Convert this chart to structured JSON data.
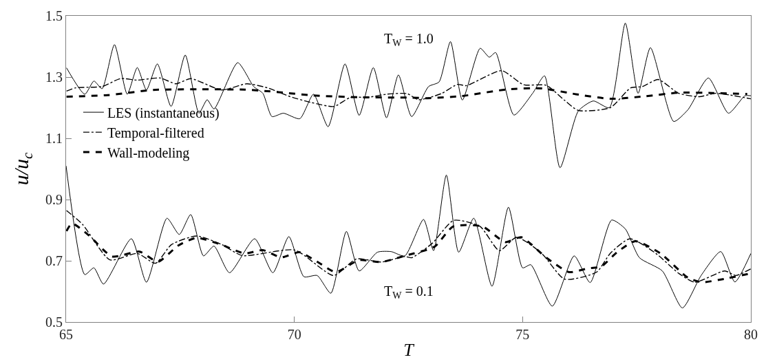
{
  "chart_data": {
    "type": "line",
    "xlabel": "T",
    "ylabel": "u/u$_{c}$",
    "xlim": [
      65,
      80
    ],
    "xticks": [
      65,
      70,
      75,
      80
    ],
    "ylim": [
      0.5,
      1.5
    ],
    "yticks": [
      0.5,
      0.7,
      0.9,
      1.1,
      1.3,
      1.5
    ],
    "legend": "left",
    "marker": "none",
    "annotations": [
      "T$_{W}$ = 1.0",
      "T$_{W}$ = 0.1"
    ],
    "series": [
      {
        "name": "LES (instantaneous)",
        "color": "#000000",
        "line_style": "solid",
        "x": [
          65.01,
          65.41,
          65.61,
          65.79,
          66.06,
          66.34,
          66.56,
          66.76,
          67.0,
          67.3,
          67.61,
          67.91,
          68.09,
          68.24,
          68.76,
          69.11,
          69.31,
          69.51,
          69.76,
          70.12,
          70.42,
          70.74,
          71.11,
          71.42,
          71.73,
          72.02,
          72.28,
          72.57,
          72.94,
          73.17,
          73.42,
          73.68,
          74.07,
          74.27,
          74.41,
          74.81,
          75.22,
          75.48,
          75.82,
          76.22,
          76.55,
          76.9,
          77.25,
          77.53,
          77.8,
          78.31,
          78.62,
          79.07,
          79.51,
          79.87,
          80.0
        ],
        "values": [
          1.33,
          1.244,
          1.287,
          1.262,
          1.406,
          1.244,
          1.331,
          1.258,
          1.343,
          1.204,
          1.372,
          1.182,
          1.226,
          1.196,
          1.347,
          1.269,
          1.247,
          1.171,
          1.182,
          1.164,
          1.244,
          1.138,
          1.343,
          1.175,
          1.331,
          1.167,
          1.307,
          1.171,
          1.269,
          1.284,
          1.416,
          1.225,
          1.394,
          1.365,
          1.38,
          1.176,
          1.247,
          1.304,
          1.004,
          1.189,
          1.222,
          1.2,
          1.476,
          1.247,
          1.396,
          1.155,
          1.193,
          1.297,
          1.182,
          1.239,
          1.239
        ]
      },
      {
        "name": "Temporal-filtered",
        "color": "#000000",
        "line_style": "dashdot",
        "x": [
          65.01,
          65.21,
          65.79,
          66.19,
          66.56,
          67.06,
          67.41,
          67.73,
          68.41,
          68.96,
          69.41,
          69.91,
          70.37,
          70.87,
          71.22,
          71.62,
          72.02,
          72.47,
          72.72,
          73.22,
          73.57,
          73.77,
          74.54,
          75.02,
          75.52,
          75.92,
          76.22,
          76.92,
          77.37,
          77.62,
          77.97,
          78.42,
          78.87,
          79.22,
          79.52,
          80.0
        ],
        "values": [
          1.254,
          1.265,
          1.269,
          1.295,
          1.29,
          1.297,
          1.278,
          1.295,
          1.258,
          1.278,
          1.265,
          1.236,
          1.217,
          1.204,
          1.233,
          1.234,
          1.244,
          1.246,
          1.226,
          1.246,
          1.276,
          1.272,
          1.321,
          1.275,
          1.273,
          1.224,
          1.191,
          1.2,
          1.265,
          1.269,
          1.292,
          1.247,
          1.236,
          1.247,
          1.242,
          1.229
        ]
      },
      {
        "name": "Wall-modeling",
        "color": "#000000",
        "line_style": "dashed",
        "x": [
          65.01,
          65.91,
          66.91,
          67.91,
          68.91,
          69.41,
          70.42,
          71.42,
          72.54,
          72.92,
          73.67,
          74.67,
          75.42,
          76.17,
          76.92,
          77.67,
          78.42,
          79.17,
          79.92
        ],
        "values": [
          1.236,
          1.241,
          1.258,
          1.26,
          1.259,
          1.254,
          1.24,
          1.234,
          1.233,
          1.231,
          1.238,
          1.26,
          1.263,
          1.244,
          1.229,
          1.237,
          1.249,
          1.248,
          1.245
        ]
      },
      {
        "color": "#000000",
        "line_style": "solid",
        "x": [
          65.0,
          65.41,
          65.61,
          65.82,
          66.43,
          66.76,
          67.21,
          67.48,
          67.73,
          68.01,
          68.24,
          68.58,
          69.13,
          69.53,
          69.88,
          70.21,
          70.5,
          70.8,
          71.14,
          71.42,
          71.82,
          72.12,
          72.42,
          72.83,
          73.05,
          73.33,
          73.6,
          73.93,
          74.33,
          74.69,
          75.0,
          75.18,
          75.65,
          76.13,
          76.48,
          76.95,
          77.25,
          77.56,
          78.06,
          78.5,
          78.91,
          79.34,
          79.65,
          80.0
        ],
        "values": [
          1.01,
          0.655,
          0.677,
          0.624,
          0.772,
          0.63,
          0.839,
          0.786,
          0.851,
          0.716,
          0.748,
          0.661,
          0.772,
          0.661,
          0.779,
          0.648,
          0.652,
          0.594,
          0.796,
          0.667,
          0.728,
          0.73,
          0.716,
          0.835,
          0.733,
          0.98,
          0.728,
          0.839,
          0.617,
          0.875,
          0.677,
          0.687,
          0.552,
          0.716,
          0.629,
          0.833,
          0.804,
          0.71,
          0.667,
          0.546,
          0.652,
          0.73,
          0.631,
          0.724
        ]
      },
      {
        "color": "#000000",
        "line_style": "dashdot",
        "x": [
          65.01,
          65.36,
          65.96,
          66.56,
          66.96,
          67.31,
          67.86,
          68.41,
          68.86,
          70.01,
          70.86,
          71.36,
          71.91,
          72.42,
          72.57,
          73.02,
          73.49,
          74.07,
          74.49,
          74.87,
          75.42,
          75.92,
          76.62,
          76.92,
          77.35,
          77.92,
          78.42,
          78.77,
          79.43,
          79.67,
          80.0
        ],
        "values": [
          0.864,
          0.819,
          0.703,
          0.724,
          0.692,
          0.753,
          0.781,
          0.753,
          0.717,
          0.735,
          0.652,
          0.706,
          0.696,
          0.714,
          0.71,
          0.757,
          0.832,
          0.812,
          0.733,
          0.777,
          0.724,
          0.64,
          0.663,
          0.724,
          0.772,
          0.724,
          0.659,
          0.63,
          0.667,
          0.652,
          0.674
        ]
      },
      {
        "color": "#000000",
        "line_style": "dashed",
        "x": [
          65.01,
          65.13,
          65.5,
          66.01,
          66.61,
          67.01,
          67.46,
          67.86,
          68.41,
          68.91,
          69.31,
          69.71,
          70.11,
          70.51,
          70.91,
          71.41,
          71.91,
          72.41,
          73.07,
          73.48,
          74.12,
          74.62,
          74.97,
          75.52,
          76.02,
          76.42,
          76.72,
          77.07,
          77.47,
          78.02,
          78.62,
          78.92,
          79.42,
          80.0
        ],
        "values": [
          0.797,
          0.822,
          0.783,
          0.714,
          0.73,
          0.697,
          0.75,
          0.775,
          0.752,
          0.724,
          0.735,
          0.711,
          0.728,
          0.696,
          0.663,
          0.702,
          0.696,
          0.716,
          0.746,
          0.812,
          0.812,
          0.761,
          0.777,
          0.71,
          0.663,
          0.675,
          0.681,
          0.728,
          0.764,
          0.724,
          0.645,
          0.63,
          0.641,
          0.659
        ]
      }
    ]
  }
}
